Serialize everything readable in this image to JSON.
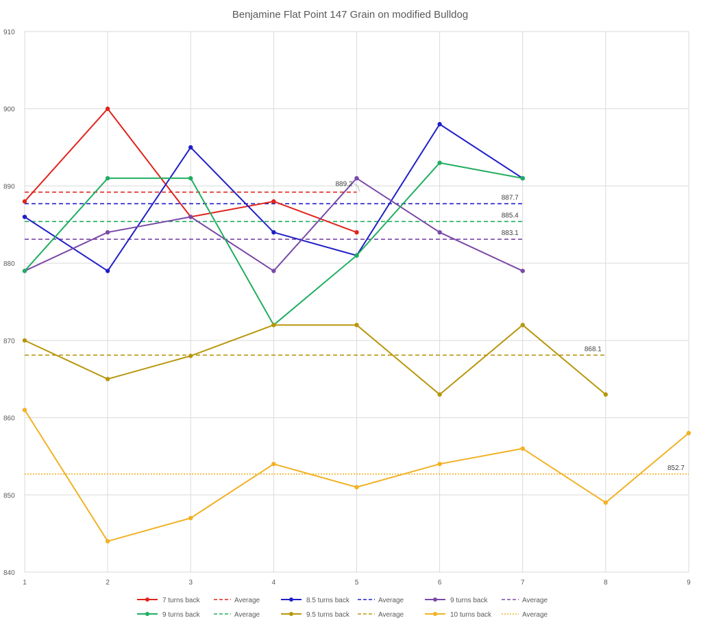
{
  "chart_data": {
    "type": "line",
    "title": "Benjamine Flat Point 147 Grain on modified Bulldog",
    "xlabel": "",
    "ylabel": "",
    "xlim": [
      1,
      9
    ],
    "ylim": [
      840,
      910
    ],
    "x_ticks": [
      1,
      2,
      3,
      4,
      5,
      6,
      7,
      8,
      9
    ],
    "y_ticks": [
      840,
      850,
      860,
      870,
      880,
      890,
      900,
      910
    ],
    "grid": true,
    "legend_position": "bottom",
    "series": [
      {
        "name": "7 turns back",
        "color": "#e0231c",
        "x": [
          1,
          2,
          3,
          4,
          5
        ],
        "values": [
          888,
          900,
          886,
          888,
          884
        ],
        "average": {
          "name": "Average",
          "value": 889.2,
          "label": "889.2",
          "style": "dashed",
          "x_end": 5
        }
      },
      {
        "name": "8.5 turns back",
        "color": "#1f1fc8",
        "x": [
          1,
          2,
          3,
          4,
          5,
          6,
          7
        ],
        "values": [
          886,
          879,
          895,
          884,
          881,
          898,
          891
        ],
        "average": {
          "name": "Average",
          "value": 887.7,
          "label": "887.7",
          "style": "dashed",
          "x_end": 7
        }
      },
      {
        "name": "9 turns back",
        "color": "#7a48a8",
        "x": [
          1,
          2,
          3,
          4,
          5,
          6,
          7
        ],
        "values": [
          879,
          884,
          886,
          879,
          891,
          884,
          879
        ],
        "average": {
          "name": "Average",
          "value": 883.1,
          "label": "883.1",
          "style": "dashed",
          "x_end": 7
        }
      },
      {
        "name": "9 turns back",
        "color": "#1fad5f",
        "x": [
          1,
          2,
          3,
          4,
          5,
          6,
          7
        ],
        "values": [
          879,
          891,
          891,
          872,
          881,
          893,
          891
        ],
        "average": {
          "name": "Average",
          "value": 885.4,
          "label": "885.4",
          "style": "dashed",
          "x_end": 7
        }
      },
      {
        "name": "9.5 turns back",
        "color": "#b8960c",
        "x": [
          1,
          2,
          3,
          4,
          5,
          6,
          7,
          8
        ],
        "values": [
          870,
          865,
          868,
          872,
          872,
          863,
          872,
          863
        ],
        "average": {
          "name": "Average",
          "value": 868.1,
          "label": "868.1",
          "style": "dashed",
          "x_end": 8
        }
      },
      {
        "name": "10 turns back",
        "color": "#f2b124",
        "x": [
          1,
          2,
          3,
          4,
          5,
          6,
          7,
          8,
          9
        ],
        "values": [
          861,
          844,
          847,
          854,
          851,
          854,
          856,
          849,
          858
        ],
        "average": {
          "name": "Average",
          "value": 852.7,
          "label": "852.7",
          "style": "dotted",
          "x_end": 9
        }
      }
    ]
  }
}
